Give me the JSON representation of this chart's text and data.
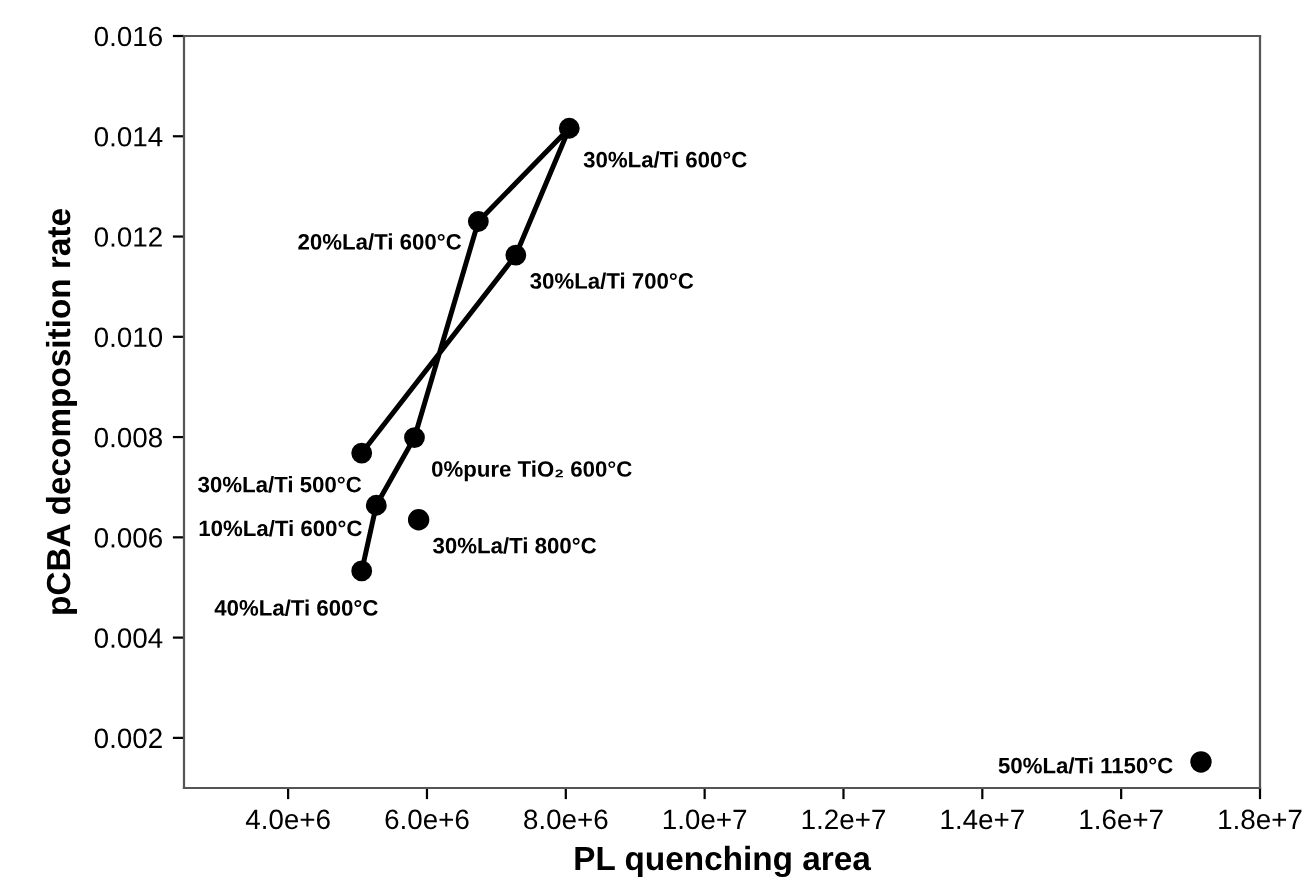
{
  "chart_data": {
    "type": "line",
    "xlabel": "PL quenching area",
    "ylabel": "pCBA decomposition rate",
    "series": [
      {
        "color": "#000000",
        "marker": "circle",
        "line_style": "solid",
        "x": [
          5060000,
          5270000,
          5820000,
          6740000,
          8050000,
          7280000,
          5060000
        ],
        "values": [
          0.00533,
          0.00664,
          0.00799,
          0.0123,
          0.01416,
          0.01163,
          0.00768
        ]
      },
      {
        "type": "scatter",
        "color": "#000000",
        "marker": "circle",
        "x": [
          5880000,
          17150000
        ],
        "values": [
          0.00635,
          0.00152
        ]
      }
    ],
    "annotations": [
      {
        "text": "40%La/Ti 600°C",
        "x": 5060000,
        "y": 0.00533
      },
      {
        "text": "10%La/Ti 600°C",
        "x": 5270000,
        "y": 0.00664
      },
      {
        "text": "0%pure TiO₂ 600°C",
        "x": 5820000,
        "y": 0.00799
      },
      {
        "text": "20%La/Ti 600°C",
        "x": 6740000,
        "y": 0.0123
      },
      {
        "text": "30%La/Ti 600°C",
        "x": 8050000,
        "y": 0.01416
      },
      {
        "text": "30%La/Ti 700°C",
        "x": 7280000,
        "y": 0.01163
      },
      {
        "text": "30%La/Ti 500°C",
        "x": 5060000,
        "y": 0.00768
      },
      {
        "text": "30%La/Ti 800°C",
        "x": 5880000,
        "y": 0.00635
      },
      {
        "text": "50%La/Ti 1150°C",
        "x": 17150000,
        "y": 0.00152
      }
    ],
    "xlim": [
      2500000,
      18000000
    ],
    "xticks": [
      {
        "value": 4000000,
        "label": "4.0e+6"
      },
      {
        "value": 6000000,
        "label": "6.0e+6"
      },
      {
        "value": 8000000,
        "label": "8.0e+6"
      },
      {
        "value": 10000000,
        "label": "1.0e+7"
      },
      {
        "value": 12000000,
        "label": "1.2e+7"
      },
      {
        "value": 14000000,
        "label": "1.4e+7"
      },
      {
        "value": 16000000,
        "label": "1.6e+7"
      },
      {
        "value": 18000000,
        "label": "1.8e+7"
      }
    ],
    "ylim": [
      0.001,
      0.016
    ],
    "yticks": [
      {
        "value": 0.002,
        "label": "0.002"
      },
      {
        "value": 0.004,
        "label": "0.004"
      },
      {
        "value": 0.006,
        "label": "0.006"
      },
      {
        "value": 0.008,
        "label": "0.008"
      },
      {
        "value": 0.01,
        "label": "0.010"
      },
      {
        "value": 0.012,
        "label": "0.012"
      },
      {
        "value": 0.014,
        "label": "0.014"
      },
      {
        "value": 0.016,
        "label": "0.016"
      }
    ],
    "grid": false,
    "legend": false
  }
}
